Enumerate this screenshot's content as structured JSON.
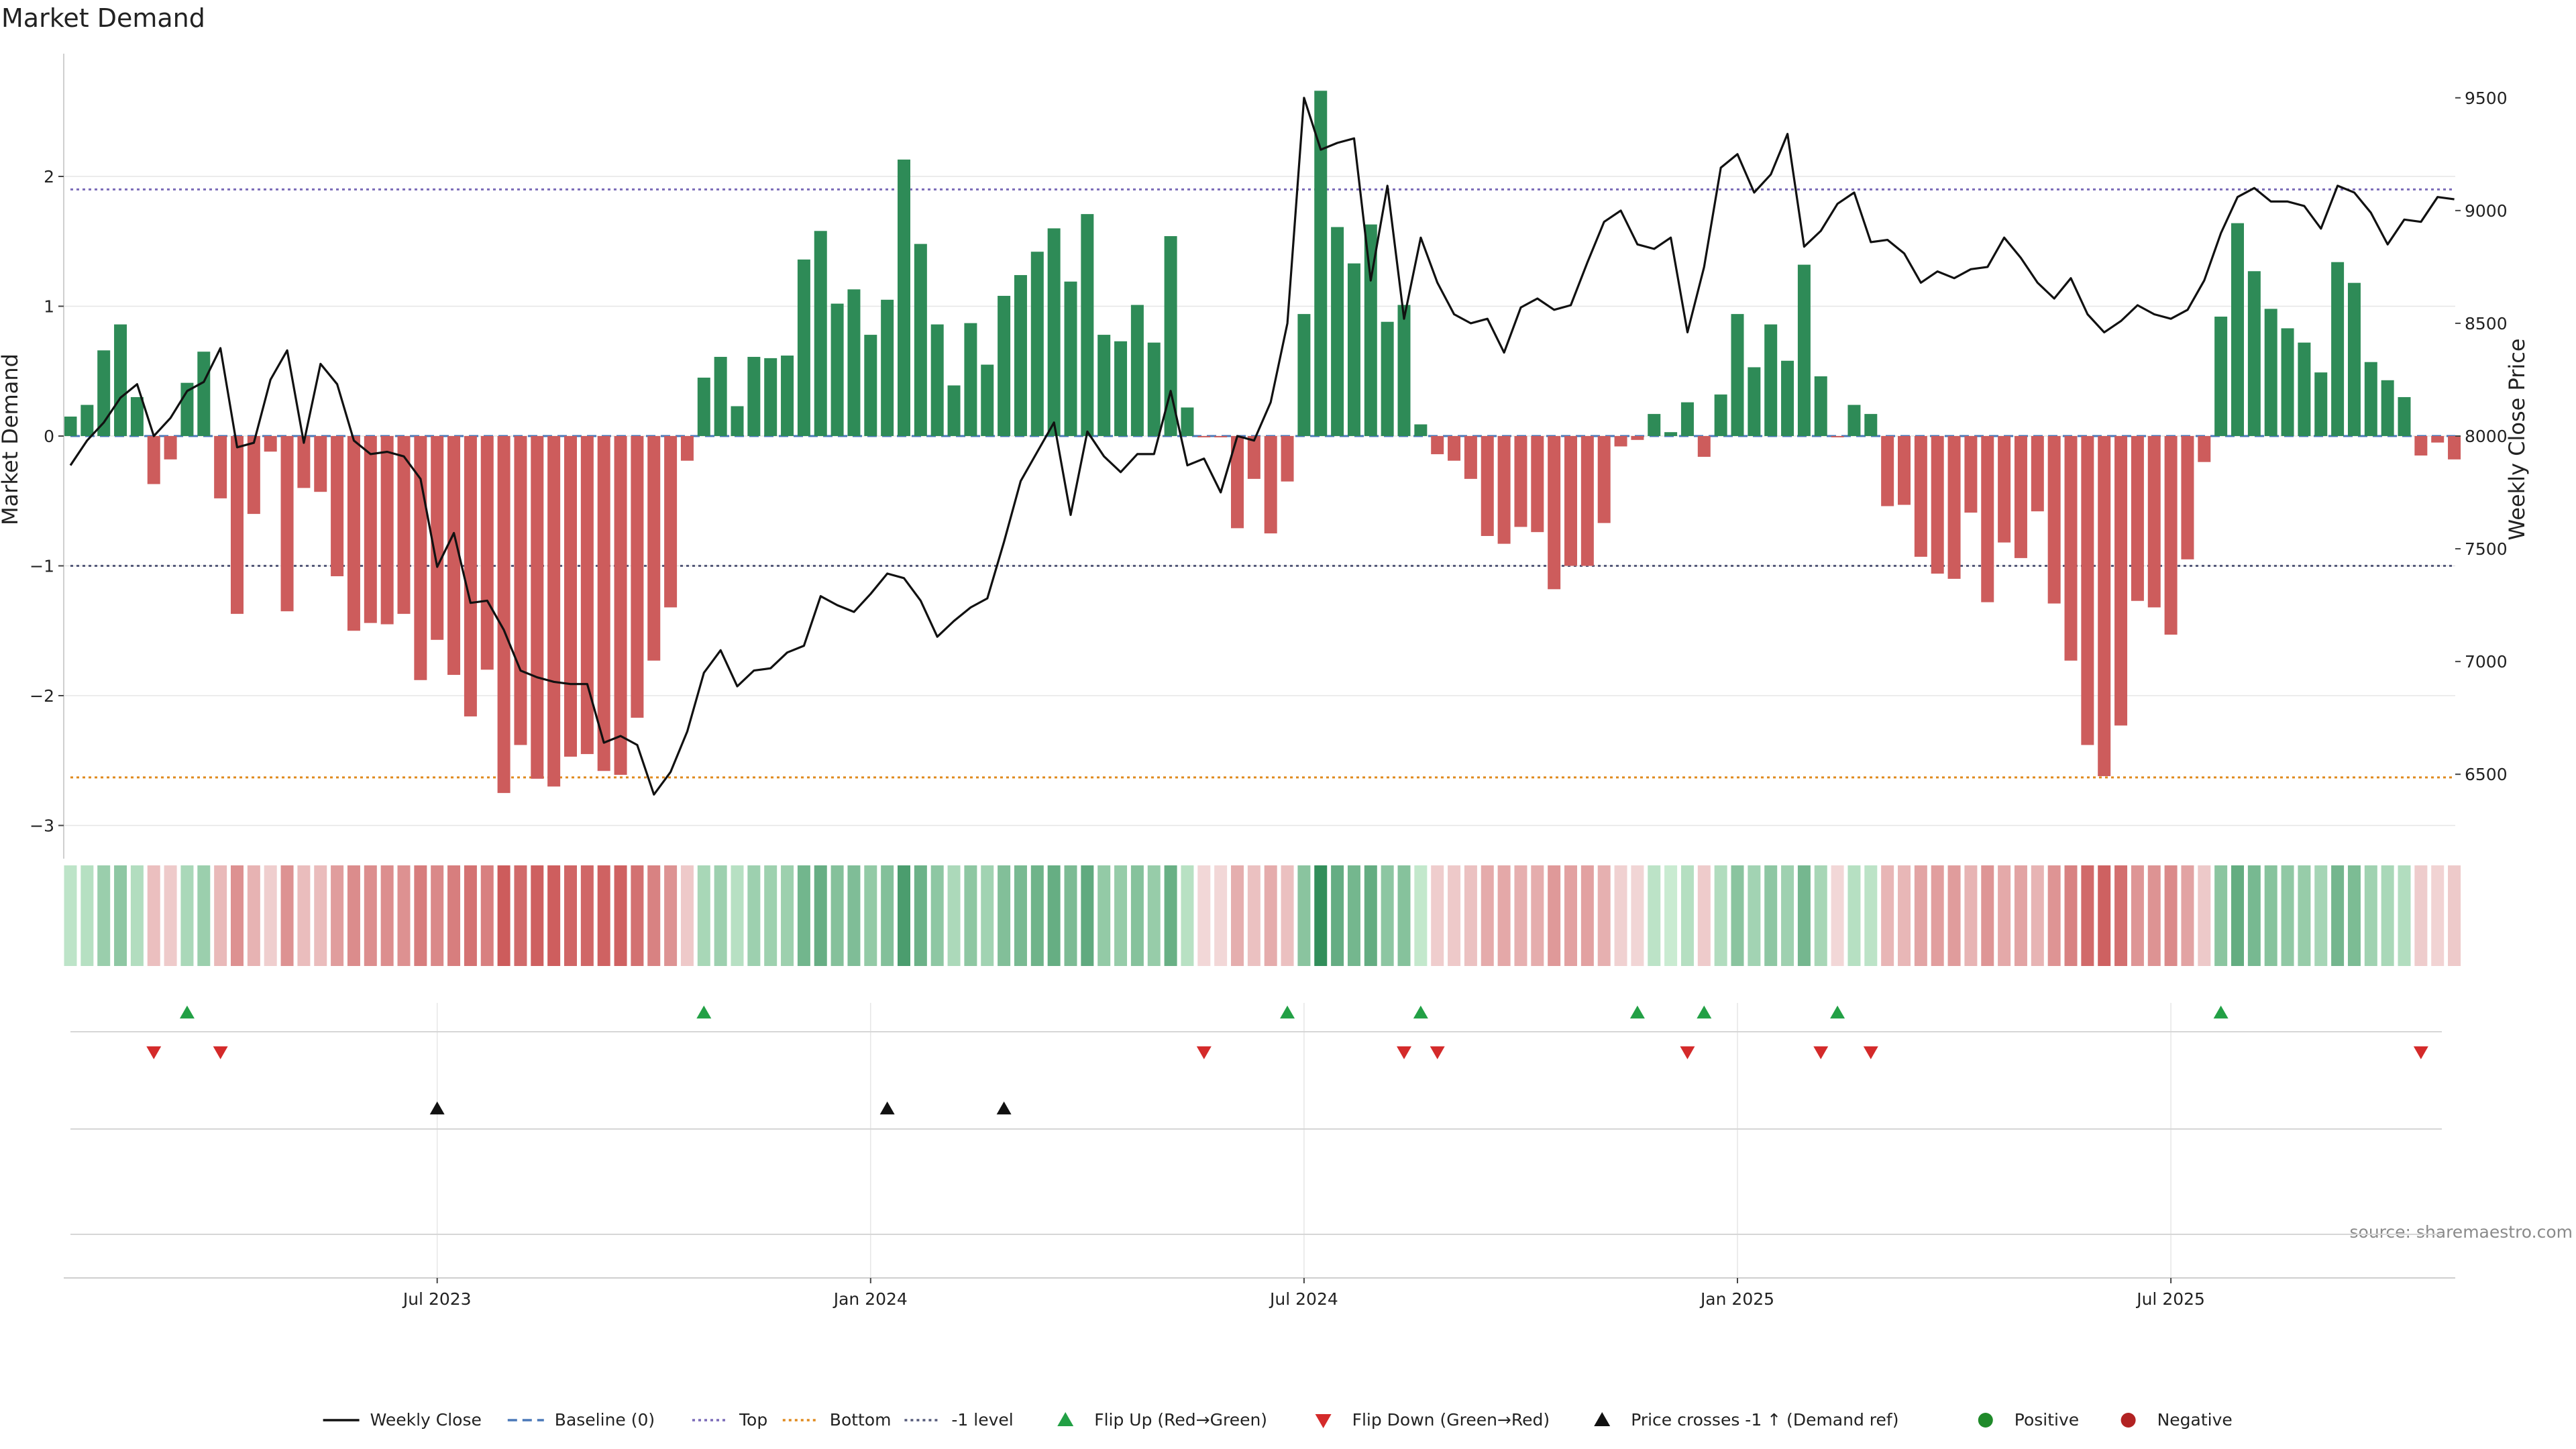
{
  "chart_data": {
    "type": "bar",
    "title": "Market Demand",
    "ylabel": "Market Demand",
    "y2label": "Weekly Close Price",
    "ylim": [
      -3.3,
      2.9
    ],
    "y2lim": [
      6250,
      9650
    ],
    "yticks": [
      2,
      1,
      0,
      -1,
      -2,
      -3
    ],
    "ytick_labels": [
      "2",
      "1",
      "0",
      "−1",
      "−2",
      "−3"
    ],
    "y2ticks": [
      9500,
      9000,
      8500,
      8000,
      7500,
      7000,
      6500
    ],
    "y2tick_labels": [
      "9500",
      "9000",
      "8500",
      "8000",
      "7500",
      "7000",
      "6500"
    ],
    "x_start_week": 0,
    "x_tick_weeks": [
      22,
      48,
      74,
      100,
      126
    ],
    "x_tick_labels": [
      "Jul 2023",
      "Jan 2024",
      "Jul 2024",
      "Jan 2025",
      "Jul 2025"
    ],
    "reference_lines": {
      "top": 1.9,
      "bottom": -2.63,
      "minus_one": -1,
      "baseline": 0
    },
    "demand": [
      0.15,
      0.24,
      0.66,
      0.86,
      0.3,
      -0.37,
      -0.18,
      0.41,
      0.65,
      -0.48,
      -1.37,
      -0.6,
      -0.12,
      -1.35,
      -0.4,
      -0.43,
      -1.08,
      -1.5,
      -1.44,
      -1.45,
      -1.37,
      -1.88,
      -1.57,
      -1.84,
      -2.16,
      -1.8,
      -2.75,
      -2.38,
      -2.64,
      -2.7,
      -2.47,
      -2.45,
      -2.58,
      -2.61,
      -2.17,
      -1.73,
      -1.32,
      -0.19,
      0.45,
      0.61,
      0.23,
      0.61,
      0.6,
      0.62,
      1.36,
      1.58,
      1.02,
      1.13,
      0.78,
      1.05,
      2.13,
      1.48,
      0.86,
      0.39,
      0.87,
      0.55,
      1.08,
      1.24,
      1.42,
      1.6,
      1.19,
      1.71,
      0.78,
      0.73,
      1.01,
      0.72,
      1.54,
      0.22,
      -0.01,
      -0.01,
      -0.71,
      -0.33,
      -0.75,
      -0.35,
      0.94,
      2.66,
      1.61,
      1.33,
      1.63,
      0.88,
      1.01,
      0.09,
      -0.14,
      -0.19,
      -0.33,
      -0.77,
      -0.83,
      -0.7,
      -0.74,
      -1.18,
      -1.0,
      -1.0,
      -0.67,
      -0.08,
      -0.03,
      0.17,
      0.03,
      0.26,
      -0.16,
      0.32,
      0.94,
      0.53,
      0.86,
      0.58,
      1.32,
      0.46,
      -0.01,
      0.24,
      0.17,
      -0.54,
      -0.53,
      -0.93,
      -1.06,
      -1.1,
      -0.59,
      -1.28,
      -0.82,
      -0.94,
      -0.58,
      -1.29,
      -1.73,
      -2.38,
      -2.62,
      -2.23,
      -1.27,
      -1.32,
      -1.53,
      -0.95,
      -0.2,
      0.92,
      1.64,
      1.27,
      0.98,
      0.83,
      0.72,
      0.49,
      1.34,
      1.18,
      0.57,
      0.43,
      0.3,
      -0.15,
      -0.05,
      -0.18
    ],
    "weekly_close": [
      7870,
      7980,
      8060,
      8170,
      8230,
      8000,
      8080,
      8200,
      8240,
      8390,
      7950,
      7970,
      8250,
      8380,
      7970,
      8320,
      8230,
      7980,
      7920,
      7930,
      7910,
      7810,
      7420,
      7570,
      7260,
      7270,
      7140,
      6960,
      6930,
      6910,
      6900,
      6900,
      6640,
      6670,
      6630,
      6410,
      6510,
      6690,
      6950,
      7050,
      6890,
      6960,
      6970,
      7040,
      7070,
      7290,
      7250,
      7220,
      7300,
      7390,
      7370,
      7270,
      7110,
      7180,
      7240,
      7280,
      7530,
      7800,
      7930,
      8060,
      7650,
      8020,
      7910,
      7840,
      7920,
      7920,
      8200,
      7870,
      7900,
      7750,
      8000,
      7980,
      8150,
      8500,
      9500,
      9270,
      9300,
      9320,
      8690,
      9110,
      8520,
      8880,
      8680,
      8540,
      8500,
      8520,
      8370,
      8570,
      8610,
      8560,
      8580,
      8770,
      8950,
      9000,
      8850,
      8830,
      8880,
      8460,
      8750,
      9190,
      9250,
      9080,
      9160,
      9340,
      8840,
      8910,
      9030,
      9080,
      8860,
      8870,
      8810,
      8680,
      8730,
      8700,
      8740,
      8750,
      8880,
      8790,
      8680,
      8610,
      8700,
      8540,
      8460,
      8510,
      8580,
      8540,
      8520,
      8560,
      8690,
      8900,
      9060,
      9100,
      9040,
      9040,
      9020,
      8920,
      9110,
      9080,
      8990,
      8850,
      8960,
      8950,
      9060,
      9050
    ],
    "flip_up_weeks": [
      7,
      38,
      73,
      81,
      94,
      98,
      106,
      129
    ],
    "flip_down_weeks": [
      5,
      9,
      68,
      80,
      82,
      97,
      105,
      108,
      141
    ],
    "price_cross_weeks": [
      22,
      49,
      56
    ],
    "legend": [
      {
        "key": "weekly_close",
        "label": "Weekly Close",
        "marker": "line"
      },
      {
        "key": "baseline",
        "label": "Baseline (0)",
        "marker": "dashed"
      },
      {
        "key": "top",
        "label": "Top",
        "marker": "dotted"
      },
      {
        "key": "bottom",
        "label": "Bottom",
        "marker": "dotted"
      },
      {
        "key": "minus_one",
        "label": "-1 level",
        "marker": "dotted"
      },
      {
        "key": "flip_up",
        "label": "Flip Up (Red→Green)",
        "marker": "triangle-up"
      },
      {
        "key": "flip_down",
        "label": "Flip Down (Green→Red)",
        "marker": "triangle-down"
      },
      {
        "key": "price_cross",
        "label": "Price crosses -1 ↑ (Demand ref)",
        "marker": "triangle-up"
      },
      {
        "key": "positive",
        "label": "Positive",
        "marker": "circle"
      },
      {
        "key": "negative",
        "label": "Negative",
        "marker": "circle"
      }
    ]
  },
  "source": "source: sharemaestro.com",
  "colors": {
    "positive": "#2e8b57",
    "negative": "#cd5c5c",
    "price_line": "#111111",
    "top_line": "#7b6bb8",
    "bottom_line": "#e08a1e",
    "minus_one_line": "#555a7a",
    "baseline": "#4a78b8",
    "flip_up": "#22a045",
    "flip_down": "#d42a2a",
    "price_cross": "#111111",
    "legend_positive": "#1f8a2a",
    "legend_negative": "#b22222",
    "grid": "#e6e6e6"
  }
}
